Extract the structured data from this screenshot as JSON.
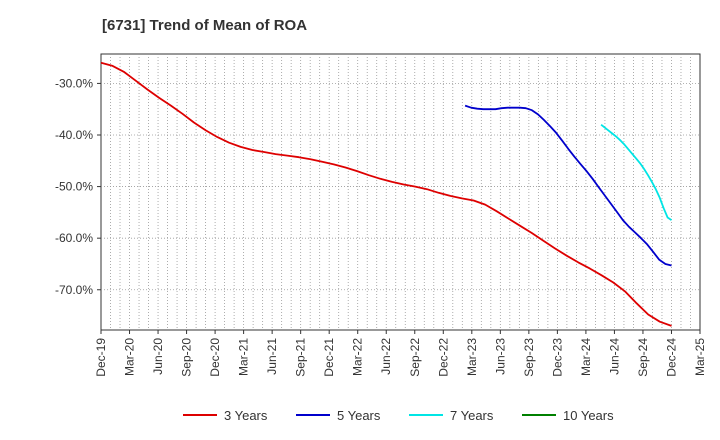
{
  "chart_data": {
    "type": "line",
    "title": "[6731]  Trend of Mean of ROA",
    "xlabel": "",
    "ylabel": "",
    "ylim": [
      -77.8,
      -24.3
    ],
    "y_ticks": [
      -30,
      -40,
      -50,
      -60,
      -70
    ],
    "y_tick_labels": [
      "-30.0%",
      "-40.0%",
      "-50.0%",
      "-60.0%",
      "-70.0%"
    ],
    "x_tick_labels": [
      "Dec-19",
      "Mar-20",
      "Jun-20",
      "Sep-20",
      "Dec-20",
      "Mar-21",
      "Jun-21",
      "Sep-21",
      "Dec-21",
      "Mar-22",
      "Jun-22",
      "Sep-22",
      "Dec-22",
      "Mar-23",
      "Jun-23",
      "Sep-23",
      "Dec-23",
      "Mar-24",
      "Jun-24",
      "Sep-24",
      "Dec-24",
      "Mar-25"
    ],
    "grid": "vertical-dotted, horizontal-dotted",
    "legend_position": "bottom",
    "series": [
      {
        "name": "3 Years",
        "color": "#dd0000",
        "values": [
          -26.0,
          -26.6,
          -27.8,
          -29.5,
          -31.2,
          -32.8,
          -34.3,
          -35.9,
          -37.6,
          -39.1,
          -40.4,
          -41.5,
          -42.3,
          -42.9,
          -43.3,
          -43.7,
          -44.0,
          -44.3,
          -44.7,
          -45.2,
          -45.7,
          -46.3,
          -47.0,
          -47.8,
          -48.5,
          -49.1,
          -49.6,
          -50.0,
          -50.5,
          -51.2,
          -51.8,
          -52.3,
          -52.7,
          -53.5,
          -54.8,
          -56.2,
          -57.6,
          -59.0,
          -60.5,
          -62.0,
          -63.4,
          -64.7,
          -65.9,
          -67.2,
          -68.6,
          -70.3,
          -72.6,
          -74.8,
          -76.2,
          -77.0
        ]
      },
      {
        "name": "5 Years",
        "color": "#0000cc",
        "values": [
          null,
          null,
          null,
          null,
          null,
          null,
          null,
          null,
          null,
          null,
          null,
          null,
          null,
          null,
          null,
          null,
          null,
          null,
          null,
          null,
          null,
          null,
          null,
          null,
          null,
          null,
          null,
          null,
          null,
          null,
          null,
          null,
          null,
          null,
          null,
          null,
          null,
          null,
          null,
          null,
          null,
          null,
          null,
          null,
          null,
          null,
          null,
          null,
          null,
          null,
          null,
          null,
          null,
          null,
          null,
          null,
          null,
          null,
          null,
          null,
          -34.3,
          -34.7,
          -34.9,
          -35.0,
          -35.0,
          -35.0,
          -34.8,
          -34.7,
          -34.7,
          -34.7,
          -34.8,
          -35.2,
          -36.0,
          -37.1,
          -38.3,
          -39.6,
          -41.1,
          -42.7,
          -44.2,
          -45.6,
          -47.0,
          -48.5,
          -50.1,
          -51.7,
          -53.3,
          -54.9,
          -56.5,
          -57.8,
          -58.9,
          -60.0,
          -61.2,
          -62.7,
          -64.2,
          -65.0,
          -65.3
        ]
      },
      {
        "name": "7 Years",
        "color": "#00e5e5",
        "values": [
          null,
          null,
          null,
          null,
          null,
          null,
          null,
          null,
          null,
          null,
          null,
          null,
          null,
          null,
          null,
          null,
          null,
          null,
          null,
          null,
          null,
          null,
          null,
          null,
          null,
          null,
          null,
          null,
          null,
          null,
          null,
          null,
          null,
          null,
          null,
          null,
          null,
          null,
          null,
          null,
          null,
          null,
          null,
          null,
          null,
          null,
          null,
          null,
          null,
          null,
          null,
          null,
          null,
          null,
          null,
          null,
          null,
          null,
          null,
          null,
          null,
          null,
          null,
          null,
          null,
          null,
          null,
          null,
          null,
          null,
          null,
          null,
          null,
          null,
          null,
          null,
          null,
          null,
          null,
          null,
          null,
          null,
          null,
          null,
          null,
          null,
          null,
          null,
          null,
          null,
          null,
          null,
          null,
          null,
          null,
          null,
          null,
          null,
          null,
          null,
          null,
          null,
          null,
          null,
          null,
          null,
          null,
          null,
          null,
          null,
          null,
          null,
          null,
          null,
          null,
          null,
          null,
          null,
          null,
          null,
          null,
          null,
          null,
          null,
          null,
          null,
          null,
          null,
          -38.0,
          -38.6,
          -39.2,
          -39.8,
          -40.4,
          -41.1,
          -41.9,
          -42.8,
          -43.7,
          -44.6,
          -45.5,
          -46.6,
          -47.8,
          -49.1,
          -50.5,
          -52.2,
          -54.2,
          -56.0,
          -56.5
        ]
      },
      {
        "name": "10 Years",
        "color": "#008000",
        "values": []
      }
    ]
  }
}
